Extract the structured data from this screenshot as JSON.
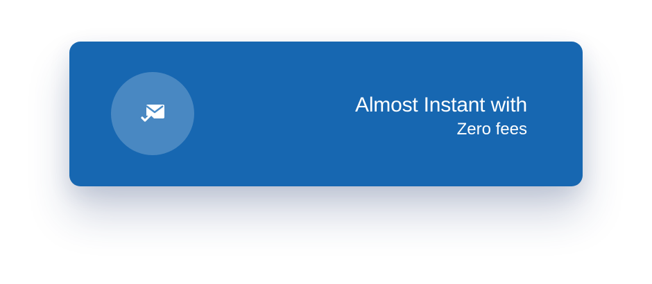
{
  "card": {
    "headline": "Almost Instant with",
    "subline": "Zero fees",
    "background_color": "#1767b1",
    "icon": "mail-check-icon"
  }
}
